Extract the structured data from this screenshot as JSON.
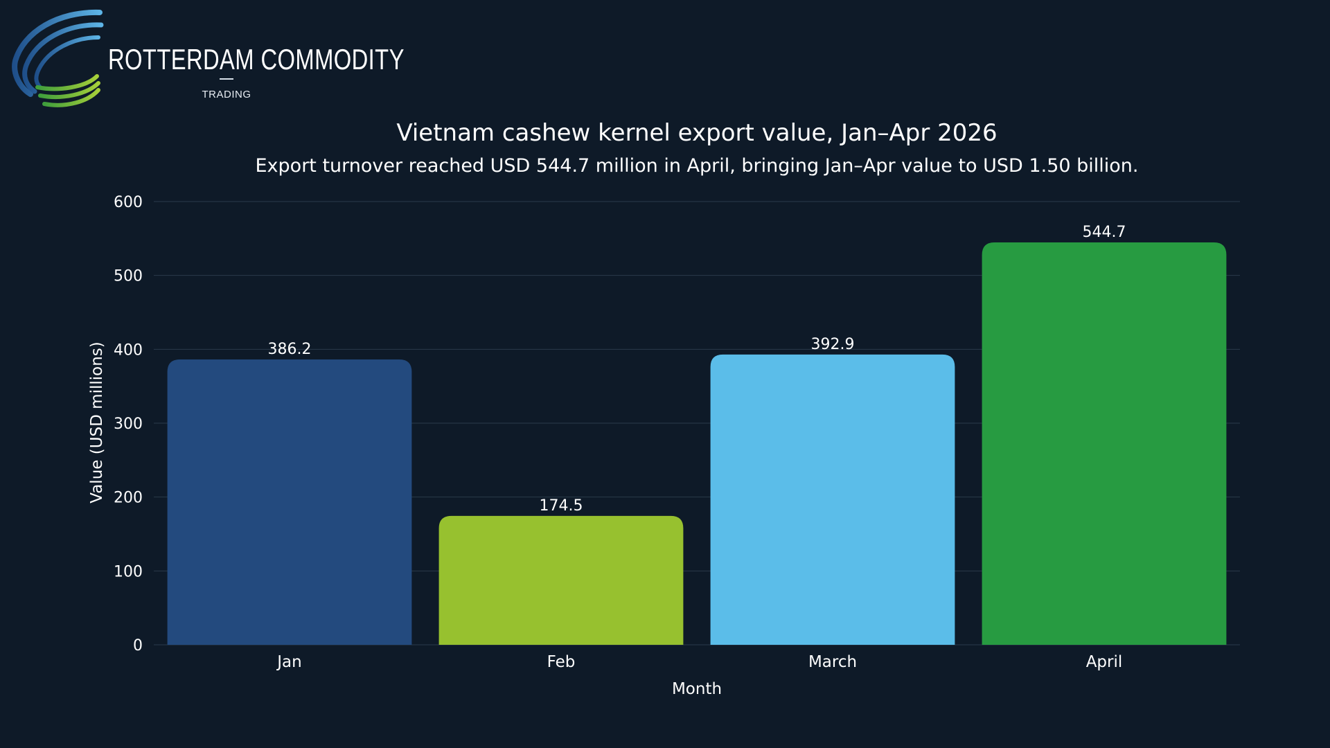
{
  "brand": {
    "name": "ROTTERDAM COMMODITY",
    "sub": "TRADING",
    "logo_icon": "swoosh-logo-icon"
  },
  "chart_data": {
    "type": "bar",
    "title": "Vietnam cashew kernel export value, Jan–Apr 2026",
    "subtitle": "Export turnover reached USD 544.7 million in April, bringing Jan–Apr value to USD 1.50 billion.",
    "xlabel": "Month",
    "ylabel": "Value (USD millions)",
    "categories": [
      "Jan",
      "Feb",
      "March",
      "April"
    ],
    "values": [
      386.2,
      174.5,
      392.9,
      544.7
    ],
    "data_labels": [
      "386.2",
      "174.5",
      "392.9",
      "544.7"
    ],
    "colors": [
      "#234a7e",
      "#97c12f",
      "#5bbde9",
      "#279b41"
    ],
    "ylim": [
      0,
      600
    ],
    "yticks": [
      0,
      100,
      200,
      300,
      400,
      500,
      600
    ],
    "grid": true,
    "legend": "none"
  },
  "theme": {
    "background": "#0e1a28",
    "gridline": "#2b3a4b",
    "text": "#ffffff"
  }
}
